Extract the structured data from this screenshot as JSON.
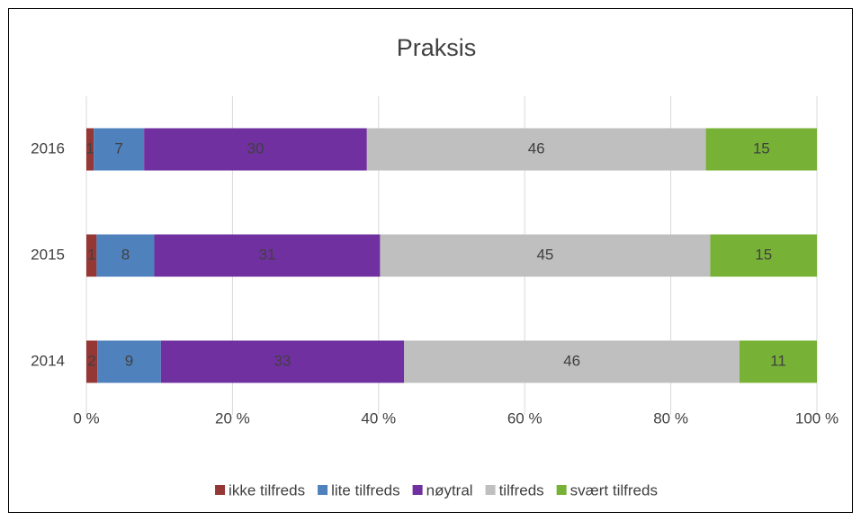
{
  "chart_data": {
    "type": "stacked-barh",
    "title": "Praksis",
    "categories": [
      "2016",
      "2015",
      "2014"
    ],
    "series": [
      {
        "name": "ikke tilfreds",
        "color": "#953735",
        "values": [
          1.0,
          1.4,
          1.5
        ],
        "value_labels": [
          "1",
          "1",
          "2"
        ]
      },
      {
        "name": "lite tilfreds",
        "color": "#4f81bd",
        "values": [
          6.9,
          7.9,
          8.7
        ],
        "value_labels": [
          "7",
          "8",
          "9"
        ]
      },
      {
        "name": "nøytral",
        "color": "#7030a0",
        "values": [
          30.5,
          30.9,
          33.3
        ],
        "value_labels": [
          "30",
          "31",
          "33"
        ]
      },
      {
        "name": "tilfreds",
        "color": "#bfbfbf",
        "values": [
          46.4,
          45.2,
          45.9
        ],
        "value_labels": [
          "46",
          "45",
          "46"
        ]
      },
      {
        "name": "svært tilfreds",
        "color": "#77b236",
        "values": [
          15.2,
          14.6,
          10.6
        ],
        "value_labels": [
          "15",
          "15",
          "11"
        ]
      }
    ],
    "xlim": [
      0,
      100
    ],
    "xticks": [
      {
        "value": 0,
        "label": "0 %"
      },
      {
        "value": 20,
        "label": "20 %"
      },
      {
        "value": 40,
        "label": "40 %"
      },
      {
        "value": 60,
        "label": "60 %"
      },
      {
        "value": 80,
        "label": "80 %"
      },
      {
        "value": 100,
        "label": "100 %"
      }
    ],
    "grid": true,
    "legend": "bottom"
  }
}
